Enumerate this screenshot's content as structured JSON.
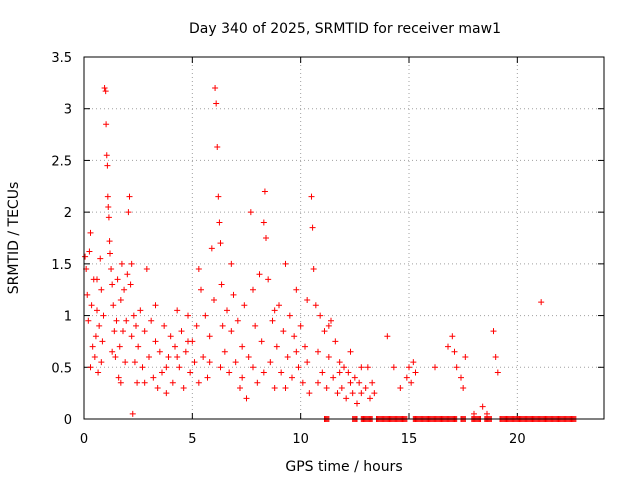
{
  "chart_data": {
    "type": "scatter",
    "title": "Day 340 of 2025, SRMTID for receiver maw1",
    "xlabel": "GPS time / hours",
    "ylabel": "SRMTID / TECUs",
    "xlim": [
      0,
      24
    ],
    "ylim": [
      0,
      3.5
    ],
    "xticks": [
      0,
      5,
      10,
      15,
      20
    ],
    "xtick_labels": [
      "0",
      "5",
      "10",
      "15",
      "20"
    ],
    "yticks": [
      0,
      0.5,
      1,
      1.5,
      2,
      2.5,
      3,
      3.5
    ],
    "ytick_labels": [
      "0",
      "0.5",
      "1",
      "1.5",
      "2",
      "2.5",
      "3",
      "3.5"
    ],
    "grid": true,
    "marker": "plus",
    "color": "#ff0000",
    "series": [
      {
        "name": "SRMTID",
        "points": [
          [
            0.05,
            1.57
          ],
          [
            0.1,
            1.45
          ],
          [
            0.15,
            1.2
          ],
          [
            0.2,
            0.95
          ],
          [
            0.25,
            1.62
          ],
          [
            0.3,
            1.8
          ],
          [
            0.35,
            1.1
          ],
          [
            0.4,
            0.7
          ],
          [
            0.45,
            1.35
          ],
          [
            0.5,
            0.6
          ],
          [
            0.55,
            0.8
          ],
          [
            0.6,
            1.05
          ],
          [
            0.65,
            0.45
          ],
          [
            0.7,
            0.9
          ],
          [
            0.75,
            1.55
          ],
          [
            0.8,
            1.25
          ],
          [
            0.85,
            0.75
          ],
          [
            0.9,
            1.0
          ],
          [
            0.95,
            3.2
          ],
          [
            1.0,
            3.17
          ],
          [
            1.02,
            2.85
          ],
          [
            1.05,
            2.55
          ],
          [
            1.08,
            2.45
          ],
          [
            1.1,
            2.15
          ],
          [
            1.12,
            2.05
          ],
          [
            1.15,
            1.95
          ],
          [
            1.18,
            1.72
          ],
          [
            1.2,
            1.6
          ],
          [
            1.25,
            1.45
          ],
          [
            1.3,
            1.3
          ],
          [
            1.35,
            1.1
          ],
          [
            1.4,
            0.85
          ],
          [
            1.45,
            0.6
          ],
          [
            1.5,
            0.95
          ],
          [
            1.55,
            1.35
          ],
          [
            1.6,
            0.4
          ],
          [
            1.65,
            0.7
          ],
          [
            1.7,
            1.15
          ],
          [
            1.75,
            1.5
          ],
          [
            1.8,
            0.85
          ],
          [
            1.85,
            1.25
          ],
          [
            1.9,
            0.55
          ],
          [
            1.95,
            0.95
          ],
          [
            2.0,
            1.4
          ],
          [
            2.05,
            2.0
          ],
          [
            2.1,
            2.15
          ],
          [
            2.15,
            1.3
          ],
          [
            2.2,
            0.8
          ],
          [
            2.25,
            0.05
          ],
          [
            2.3,
            1.0
          ],
          [
            2.35,
            0.55
          ],
          [
            2.4,
            0.9
          ],
          [
            2.45,
            0.35
          ],
          [
            2.5,
            0.7
          ],
          [
            2.6,
            1.05
          ],
          [
            2.7,
            0.5
          ],
          [
            2.8,
            0.85
          ],
          [
            2.9,
            1.45
          ],
          [
            3.0,
            0.6
          ],
          [
            3.1,
            0.95
          ],
          [
            3.2,
            0.4
          ],
          [
            3.3,
            0.75
          ],
          [
            3.4,
            0.3
          ],
          [
            3.5,
            0.65
          ],
          [
            3.6,
            0.45
          ],
          [
            3.7,
            0.9
          ],
          [
            3.8,
            0.25
          ],
          [
            3.9,
            0.6
          ],
          [
            4.0,
            0.8
          ],
          [
            4.1,
            0.35
          ],
          [
            4.2,
            0.7
          ],
          [
            4.3,
            1.05
          ],
          [
            4.4,
            0.5
          ],
          [
            4.5,
            0.85
          ],
          [
            4.6,
            0.3
          ],
          [
            4.7,
            0.65
          ],
          [
            4.8,
            1.0
          ],
          [
            4.9,
            0.45
          ],
          [
            5.0,
            0.75
          ],
          [
            5.1,
            0.55
          ],
          [
            5.2,
            0.9
          ],
          [
            5.3,
            1.45
          ],
          [
            5.4,
            1.25
          ],
          [
            5.5,
            0.6
          ],
          [
            5.6,
            1.0
          ],
          [
            5.7,
            0.4
          ],
          [
            5.8,
            0.8
          ],
          [
            5.9,
            1.65
          ],
          [
            6.0,
            1.15
          ],
          [
            6.05,
            3.2
          ],
          [
            6.1,
            3.05
          ],
          [
            6.15,
            2.63
          ],
          [
            6.2,
            2.15
          ],
          [
            6.25,
            1.9
          ],
          [
            6.3,
            1.7
          ],
          [
            6.35,
            1.3
          ],
          [
            6.4,
            0.9
          ],
          [
            6.5,
            0.65
          ],
          [
            6.6,
            1.05
          ],
          [
            6.7,
            0.45
          ],
          [
            6.8,
            0.85
          ],
          [
            6.9,
            1.2
          ],
          [
            7.0,
            0.55
          ],
          [
            7.1,
            0.95
          ],
          [
            7.2,
            0.3
          ],
          [
            7.3,
            0.7
          ],
          [
            7.4,
            1.1
          ],
          [
            7.5,
            0.2
          ],
          [
            7.6,
            0.6
          ],
          [
            7.7,
            2.0
          ],
          [
            7.8,
            0.5
          ],
          [
            7.9,
            0.9
          ],
          [
            8.0,
            0.35
          ],
          [
            8.1,
            1.4
          ],
          [
            8.2,
            0.75
          ],
          [
            8.3,
            1.9
          ],
          [
            8.35,
            2.2
          ],
          [
            8.4,
            1.75
          ],
          [
            8.5,
            1.35
          ],
          [
            8.6,
            0.55
          ],
          [
            8.7,
            0.95
          ],
          [
            8.8,
            0.3
          ],
          [
            8.9,
            0.7
          ],
          [
            9.0,
            1.1
          ],
          [
            9.1,
            0.45
          ],
          [
            9.2,
            0.85
          ],
          [
            9.3,
            1.5
          ],
          [
            9.4,
            0.6
          ],
          [
            9.5,
            1.0
          ],
          [
            9.6,
            0.4
          ],
          [
            9.7,
            0.8
          ],
          [
            9.8,
            1.25
          ],
          [
            9.9,
            0.5
          ],
          [
            10.0,
            0.9
          ],
          [
            10.1,
            0.35
          ],
          [
            10.2,
            0.7
          ],
          [
            10.3,
            1.15
          ],
          [
            10.4,
            0.25
          ],
          [
            10.5,
            2.15
          ],
          [
            10.55,
            1.85
          ],
          [
            10.6,
            1.45
          ],
          [
            10.7,
            1.1
          ],
          [
            10.8,
            0.65
          ],
          [
            10.9,
            1.0
          ],
          [
            11.0,
            0.45
          ],
          [
            11.1,
            0.85
          ],
          [
            11.2,
            0.3
          ],
          [
            11.3,
            0.6
          ],
          [
            11.4,
            0.95
          ],
          [
            11.5,
            0.4
          ],
          [
            11.6,
            0.75
          ],
          [
            11.7,
            0.25
          ],
          [
            11.8,
            0.55
          ],
          [
            11.9,
            0.3
          ],
          [
            12.0,
            0.5
          ],
          [
            12.1,
            0.2
          ],
          [
            12.2,
            0.45
          ],
          [
            12.3,
            0.65
          ],
          [
            12.4,
            0.25
          ],
          [
            12.5,
            0.4
          ],
          [
            12.6,
            0.15
          ],
          [
            12.7,
            0.35
          ],
          [
            12.8,
            0.5
          ],
          [
            13.0,
            0.3
          ],
          [
            13.1,
            0.5
          ],
          [
            13.2,
            0.2
          ],
          [
            13.4,
            0.25
          ],
          [
            14.0,
            0.8
          ],
          [
            14.3,
            0.5
          ],
          [
            14.6,
            0.3
          ],
          [
            14.9,
            0.4
          ],
          [
            15.0,
            0.5
          ],
          [
            15.1,
            0.35
          ],
          [
            15.2,
            0.55
          ],
          [
            16.2,
            0.5
          ],
          [
            16.8,
            0.7
          ],
          [
            17.0,
            0.8
          ],
          [
            17.2,
            0.5
          ],
          [
            17.4,
            0.4
          ],
          [
            17.5,
            0.3
          ],
          [
            17.6,
            0.6
          ],
          [
            18.0,
            0.05
          ],
          [
            18.4,
            0.12
          ],
          [
            18.6,
            0.05
          ],
          [
            18.9,
            0.85
          ],
          [
            19.0,
            0.6
          ],
          [
            19.1,
            0.45
          ],
          [
            21.1,
            1.13
          ],
          [
            0.3,
            0.5
          ],
          [
            0.6,
            1.35
          ],
          [
            0.8,
            0.55
          ],
          [
            1.3,
            0.65
          ],
          [
            1.7,
            0.35
          ],
          [
            2.2,
            1.5
          ],
          [
            2.8,
            0.35
          ],
          [
            3.3,
            1.1
          ],
          [
            3.8,
            0.5
          ],
          [
            4.3,
            0.6
          ],
          [
            4.8,
            0.75
          ],
          [
            5.3,
            0.35
          ],
          [
            5.8,
            0.55
          ],
          [
            6.3,
            0.5
          ],
          [
            6.8,
            1.5
          ],
          [
            7.3,
            0.4
          ],
          [
            7.8,
            1.25
          ],
          [
            8.3,
            0.45
          ],
          [
            8.8,
            1.05
          ],
          [
            9.3,
            0.3
          ],
          [
            9.8,
            0.65
          ],
          [
            10.3,
            0.55
          ],
          [
            10.8,
            0.35
          ],
          [
            11.3,
            0.9
          ],
          [
            11.8,
            0.45
          ],
          [
            12.3,
            0.35
          ],
          [
            12.8,
            0.25
          ],
          [
            13.3,
            0.35
          ],
          [
            15.3,
            0.45
          ],
          [
            17.1,
            0.65
          ]
        ],
        "zero_band": [
          [
            11.1,
            11.3
          ],
          [
            12.4,
            12.6
          ],
          [
            12.8,
            13.3
          ],
          [
            13.5,
            14.9
          ],
          [
            15.2,
            17.2
          ],
          [
            17.4,
            17.6
          ],
          [
            17.9,
            18.3
          ],
          [
            18.5,
            18.8
          ],
          [
            19.2,
            22.7
          ]
        ]
      }
    ]
  }
}
